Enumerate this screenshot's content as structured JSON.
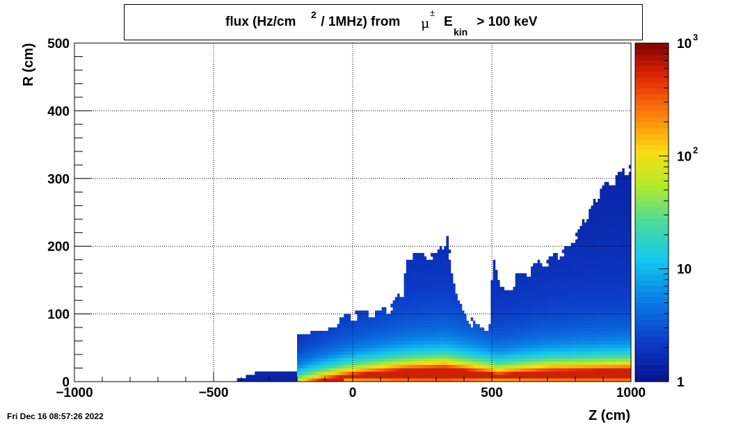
{
  "footer": {
    "timestamp": "Fri Dec 16 08:57:26 2022"
  },
  "chart_data": {
    "type": "heatmap",
    "title_parts": {
      "base": "flux (Hz/cm",
      "sup": "2",
      "mid": " / 1MHz) from",
      "particle": "μ",
      "particle_sup": "±",
      "energy_var": "E",
      "energy_sub": "kin",
      "energy_cut": " > 100 keV"
    },
    "xlabel": "Z (cm)",
    "ylabel": "R (cm)",
    "xlim": [
      -1000,
      1000
    ],
    "ylim": [
      0,
      500
    ],
    "x_ticks": [
      -1000,
      -500,
      0,
      500,
      1000
    ],
    "x_tick_labels": [
      "−1000",
      "−500",
      "0",
      "500",
      "1000"
    ],
    "y_ticks": [
      0,
      100,
      200,
      300,
      400,
      500
    ],
    "y_tick_labels": [
      "0",
      "100",
      "200",
      "300",
      "400",
      "500"
    ],
    "grid": true,
    "colorscale": "log",
    "zlim": [
      1,
      1000
    ],
    "colorbar_labels": [
      {
        "value": 1,
        "base": "1",
        "exp": ""
      },
      {
        "value": 10,
        "base": "10",
        "exp": ""
      },
      {
        "value": 100,
        "base": "10",
        "exp": "2"
      },
      {
        "value": 1000,
        "base": "10",
        "exp": "3"
      }
    ],
    "envelope": [
      [
        -1000,
        0
      ],
      [
        -500,
        0
      ],
      [
        -230,
        40
      ],
      [
        -210,
        75
      ],
      [
        -190,
        80
      ],
      [
        -100,
        85
      ],
      [
        0,
        100
      ],
      [
        100,
        105
      ],
      [
        130,
        110
      ],
      [
        160,
        125
      ],
      [
        180,
        135
      ],
      [
        195,
        175
      ],
      [
        205,
        190
      ],
      [
        300,
        190
      ],
      [
        330,
        205
      ],
      [
        340,
        215
      ],
      [
        350,
        185
      ],
      [
        370,
        140
      ],
      [
        390,
        120
      ],
      [
        420,
        95
      ],
      [
        440,
        85
      ],
      [
        460,
        78
      ],
      [
        480,
        72
      ],
      [
        490,
        75
      ],
      [
        495,
        120
      ],
      [
        500,
        160
      ],
      [
        505,
        180
      ],
      [
        530,
        140
      ],
      [
        560,
        130
      ],
      [
        590,
        160
      ],
      [
        620,
        160
      ],
      [
        660,
        175
      ],
      [
        700,
        180
      ],
      [
        740,
        190
      ],
      [
        780,
        200
      ],
      [
        820,
        230
      ],
      [
        860,
        260
      ],
      [
        900,
        290
      ],
      [
        940,
        300
      ],
      [
        970,
        310
      ],
      [
        1000,
        320
      ]
    ],
    "profile": [
      {
        "z": -1000,
        "base": 1.0
      },
      {
        "z": -230,
        "base": 1.1
      },
      {
        "z": -200,
        "base": 1.5
      },
      {
        "z": 0,
        "base": 3.5
      },
      {
        "z": 200,
        "base": 5.0
      },
      {
        "z": 330,
        "base": 5.5
      },
      {
        "z": 480,
        "base": 4.0
      },
      {
        "z": 520,
        "base": 3.5
      },
      {
        "z": 700,
        "base": 4.5
      },
      {
        "z": 1000,
        "base": 5.0
      }
    ]
  }
}
